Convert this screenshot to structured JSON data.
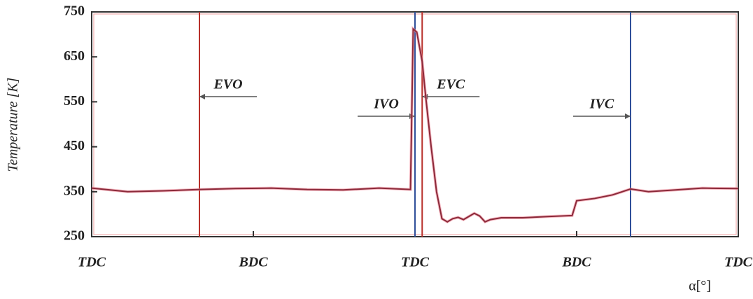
{
  "chart_data": {
    "type": "line",
    "y_label": "Temperature [K]",
    "x_label": "α[°]",
    "xlim": [
      0,
      720
    ],
    "xticks": [
      {
        "value": 0,
        "label": "TDC"
      },
      {
        "value": 180,
        "label": "BDC"
      },
      {
        "value": 360,
        "label": "TDC"
      },
      {
        "value": 540,
        "label": "BDC"
      },
      {
        "value": 720,
        "label": "TDC"
      }
    ],
    "ylim": [
      250,
      750
    ],
    "yticks": [
      250,
      350,
      450,
      550,
      650,
      750
    ],
    "x": [
      0,
      40,
      80,
      120,
      160,
      200,
      240,
      280,
      320,
      355,
      358,
      362,
      368,
      372,
      378,
      384,
      390,
      396,
      402,
      408,
      414,
      420,
      426,
      432,
      438,
      444,
      456,
      480,
      510,
      535,
      540,
      560,
      580,
      600,
      620,
      650,
      680,
      720
    ],
    "series": [
      {
        "color": "#8b2a3a",
        "values": [
          358,
          350,
          352,
          355,
          357,
          358,
          355,
          354,
          358,
          355,
          712,
          705,
          640,
          560,
          450,
          350,
          290,
          283,
          290,
          293,
          288,
          295,
          302,
          296,
          283,
          288,
          292,
          292,
          295,
          297,
          330,
          335,
          343,
          356,
          350,
          354,
          358,
          357
        ]
      }
    ],
    "vlines": [
      {
        "x": 120,
        "label": "EVO",
        "color": "#b8302a"
      },
      {
        "x": 360,
        "label": "IVO",
        "color": "#2f4f9a"
      },
      {
        "x": 368,
        "label": "EVC",
        "color": "#b8302a"
      },
      {
        "x": 600,
        "label": "IVC",
        "color": "#2f4f9a"
      }
    ]
  }
}
